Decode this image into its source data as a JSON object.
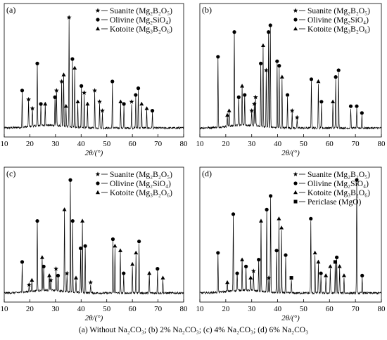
{
  "chart_data": [
    {
      "type": "line",
      "panel_label": "(a)",
      "xlabel": "2θ/(°)",
      "xlim": [
        10,
        80
      ],
      "xticks": [
        10,
        20,
        30,
        40,
        50,
        60,
        70,
        80
      ],
      "legend_position": "top-right",
      "legend": [
        {
          "marker": "star",
          "text": "Suanite (Mg₂B₂O₅)"
        },
        {
          "marker": "circle",
          "text": "Olivine (Mg₂SiO₄)"
        },
        {
          "marker": "triangle",
          "text": "Kotoite (Mg₃B₂O₆)"
        }
      ],
      "peaks": [
        {
          "x": 17.0,
          "y": 0.32,
          "m": "circle"
        },
        {
          "x": 19.5,
          "y": 0.24,
          "m": "star"
        },
        {
          "x": 21.0,
          "y": 0.16,
          "m": "star"
        },
        {
          "x": 22.9,
          "y": 0.56,
          "m": "circle"
        },
        {
          "x": 24.3,
          "y": 0.2,
          "m": "circle"
        },
        {
          "x": 26.0,
          "y": 0.2,
          "m": "triangle"
        },
        {
          "x": 29.8,
          "y": 0.26,
          "m": "circle"
        },
        {
          "x": 30.4,
          "y": 0.32,
          "m": "star"
        },
        {
          "x": 32.4,
          "y": 0.4,
          "m": "star"
        },
        {
          "x": 33.2,
          "y": 0.46,
          "m": "triangle"
        },
        {
          "x": 34.1,
          "y": 0.18,
          "m": "triangle"
        },
        {
          "x": 35.3,
          "y": 0.97,
          "m": "star"
        },
        {
          "x": 36.6,
          "y": 0.6,
          "m": "circle"
        },
        {
          "x": 37.5,
          "y": 0.52,
          "m": "triangle"
        },
        {
          "x": 38.7,
          "y": 0.22,
          "m": "triangle"
        },
        {
          "x": 40.1,
          "y": 0.36,
          "m": "circle"
        },
        {
          "x": 41.2,
          "y": 0.3,
          "m": "star"
        },
        {
          "x": 42.5,
          "y": 0.2,
          "m": "triangle"
        },
        {
          "x": 45.3,
          "y": 0.32,
          "m": "star"
        },
        {
          "x": 47.2,
          "y": 0.22,
          "m": "star"
        },
        {
          "x": 48.3,
          "y": 0.14,
          "m": "star"
        },
        {
          "x": 52.2,
          "y": 0.4,
          "m": "circle"
        },
        {
          "x": 55.4,
          "y": 0.22,
          "m": "triangle"
        },
        {
          "x": 56.7,
          "y": 0.2,
          "m": "circle"
        },
        {
          "x": 59.7,
          "y": 0.22,
          "m": "star"
        },
        {
          "x": 61.3,
          "y": 0.28,
          "m": "circle"
        },
        {
          "x": 62.3,
          "y": 0.34,
          "m": "circle"
        },
        {
          "x": 63.6,
          "y": 0.2,
          "m": "triangle"
        },
        {
          "x": 65.6,
          "y": 0.16,
          "m": "triangle"
        },
        {
          "x": 67.8,
          "y": 0.14,
          "m": "circle"
        }
      ]
    },
    {
      "type": "line",
      "panel_label": "(b)",
      "xlabel": "2θ/(°)",
      "xlim": [
        10,
        80
      ],
      "xticks": [
        10,
        20,
        30,
        40,
        50,
        60,
        70,
        80
      ],
      "legend_position": "top-right",
      "legend": [
        {
          "marker": "star",
          "text": "Suanite (Mg₂B₂O₅)"
        },
        {
          "marker": "circle",
          "text": "Olivine (Mg₂SiO₄)"
        },
        {
          "marker": "triangle",
          "text": "Kotoite (Mg₃B₂O₆)"
        }
      ],
      "peaks": [
        {
          "x": 17.0,
          "y": 0.62,
          "m": "circle"
        },
        {
          "x": 20.6,
          "y": 0.1,
          "m": "triangle"
        },
        {
          "x": 21.3,
          "y": 0.14,
          "m": "triangle"
        },
        {
          "x": 23.3,
          "y": 0.84,
          "m": "circle"
        },
        {
          "x": 25.0,
          "y": 0.26,
          "m": "circle"
        },
        {
          "x": 26.3,
          "y": 0.36,
          "m": "triangle"
        },
        {
          "x": 27.3,
          "y": 0.28,
          "m": "circle"
        },
        {
          "x": 30.0,
          "y": 0.14,
          "m": "star"
        },
        {
          "x": 31.0,
          "y": 0.2,
          "m": "star"
        },
        {
          "x": 31.5,
          "y": 0.26,
          "m": "star"
        },
        {
          "x": 33.5,
          "y": 0.56,
          "m": "circle"
        },
        {
          "x": 34.4,
          "y": 0.72,
          "m": "triangle"
        },
        {
          "x": 35.6,
          "y": 0.5,
          "m": "star"
        },
        {
          "x": 36.5,
          "y": 0.84,
          "m": "circle"
        },
        {
          "x": 37.2,
          "y": 0.9,
          "m": "circle"
        },
        {
          "x": 39.8,
          "y": 0.58,
          "m": "circle"
        },
        {
          "x": 40.6,
          "y": 0.54,
          "m": "circle"
        },
        {
          "x": 41.7,
          "y": 0.44,
          "m": "triangle"
        },
        {
          "x": 43.8,
          "y": 0.28,
          "m": "circle"
        },
        {
          "x": 45.6,
          "y": 0.14,
          "m": "star"
        },
        {
          "x": 47.5,
          "y": 0.08,
          "m": "star"
        },
        {
          "x": 53.0,
          "y": 0.42,
          "m": "circle"
        },
        {
          "x": 55.7,
          "y": 0.4,
          "m": "triangle"
        },
        {
          "x": 56.9,
          "y": 0.22,
          "m": "circle"
        },
        {
          "x": 61.3,
          "y": 0.22,
          "m": "triangle"
        },
        {
          "x": 62.4,
          "y": 0.44,
          "m": "circle"
        },
        {
          "x": 63.5,
          "y": 0.5,
          "m": "circle"
        },
        {
          "x": 68.2,
          "y": 0.18,
          "m": "circle"
        },
        {
          "x": 70.5,
          "y": 0.18,
          "m": "circle"
        },
        {
          "x": 72.5,
          "y": 0.12,
          "m": "circle"
        }
      ]
    },
    {
      "type": "line",
      "panel_label": "(c)",
      "xlabel": "2θ/(°)",
      "xlim": [
        10,
        80
      ],
      "xticks": [
        10,
        20,
        30,
        40,
        50,
        60,
        70,
        80
      ],
      "legend_position": "top-right",
      "legend": [
        {
          "marker": "star",
          "text": "Suanite (Mg₂B₂O₅)"
        },
        {
          "marker": "circle",
          "text": "Olivine (Mg₂SiO₄)"
        },
        {
          "marker": "triangle",
          "text": "Kotoite (Mg₃B₂O₆)"
        }
      ],
      "peaks": [
        {
          "x": 17.0,
          "y": 0.26,
          "m": "circle"
        },
        {
          "x": 19.7,
          "y": 0.06,
          "m": "star"
        },
        {
          "x": 20.8,
          "y": 0.1,
          "m": "triangle"
        },
        {
          "x": 22.9,
          "y": 0.62,
          "m": "circle"
        },
        {
          "x": 24.8,
          "y": 0.3,
          "m": "triangle"
        },
        {
          "x": 25.4,
          "y": 0.22,
          "m": "circle"
        },
        {
          "x": 27.6,
          "y": 0.14,
          "m": "triangle"
        },
        {
          "x": 28.2,
          "y": 0.1,
          "m": "star"
        },
        {
          "x": 30.2,
          "y": 0.2,
          "m": "star"
        },
        {
          "x": 31.0,
          "y": 0.14,
          "m": "circle"
        },
        {
          "x": 33.5,
          "y": 0.72,
          "m": "triangle"
        },
        {
          "x": 34.5,
          "y": 0.16,
          "m": "star"
        },
        {
          "x": 35.8,
          "y": 0.98,
          "m": "circle"
        },
        {
          "x": 36.7,
          "y": 0.62,
          "m": "circle"
        },
        {
          "x": 38.0,
          "y": 0.12,
          "m": "triangle"
        },
        {
          "x": 39.8,
          "y": 0.38,
          "m": "circle"
        },
        {
          "x": 40.5,
          "y": 0.62,
          "m": "triangle"
        },
        {
          "x": 41.6,
          "y": 0.4,
          "m": "circle"
        },
        {
          "x": 43.7,
          "y": 0.08,
          "m": "star"
        },
        {
          "x": 52.4,
          "y": 0.46,
          "m": "circle"
        },
        {
          "x": 53.2,
          "y": 0.4,
          "m": "triangle"
        },
        {
          "x": 55.3,
          "y": 0.36,
          "m": "triangle"
        },
        {
          "x": 56.6,
          "y": 0.16,
          "m": "circle"
        },
        {
          "x": 60.0,
          "y": 0.24,
          "m": "triangle"
        },
        {
          "x": 61.4,
          "y": 0.34,
          "m": "triangle"
        },
        {
          "x": 62.6,
          "y": 0.44,
          "m": "circle"
        },
        {
          "x": 66.6,
          "y": 0.16,
          "m": "triangle"
        },
        {
          "x": 69.8,
          "y": 0.2,
          "m": "circle"
        },
        {
          "x": 71.9,
          "y": 0.12,
          "m": "triangle"
        }
      ]
    },
    {
      "type": "line",
      "panel_label": "(d)",
      "xlabel": "2θ/(°)",
      "xlim": [
        10,
        80
      ],
      "xticks": [
        10,
        20,
        30,
        40,
        50,
        60,
        70,
        80
      ],
      "legend_position": "top-right",
      "legend": [
        {
          "marker": "star",
          "text": "Suanite (Mg₂B₂O₅)"
        },
        {
          "marker": "circle",
          "text": "Olivine (Mg₂SiO₄)"
        },
        {
          "marker": "triangle",
          "text": "Kotoite (Mg₃B₂O₆)"
        },
        {
          "marker": "square",
          "text": "Periclase (MgO)"
        }
      ],
      "peaks": [
        {
          "x": 17.0,
          "y": 0.34,
          "m": "circle"
        },
        {
          "x": 20.6,
          "y": 0.08,
          "m": "triangle"
        },
        {
          "x": 22.9,
          "y": 0.68,
          "m": "circle"
        },
        {
          "x": 24.4,
          "y": 0.16,
          "m": "circle"
        },
        {
          "x": 26.3,
          "y": 0.28,
          "m": "triangle"
        },
        {
          "x": 27.8,
          "y": 0.22,
          "m": "circle"
        },
        {
          "x": 29.6,
          "y": 0.12,
          "m": "triangle"
        },
        {
          "x": 30.7,
          "y": 0.18,
          "m": "star"
        },
        {
          "x": 32.7,
          "y": 0.28,
          "m": "circle"
        },
        {
          "x": 33.6,
          "y": 0.62,
          "m": "triangle"
        },
        {
          "x": 35.8,
          "y": 0.72,
          "m": "circle"
        },
        {
          "x": 36.6,
          "y": 0.12,
          "m": "star"
        },
        {
          "x": 37.3,
          "y": 0.84,
          "m": "circle"
        },
        {
          "x": 39.6,
          "y": 0.36,
          "m": "circle"
        },
        {
          "x": 40.5,
          "y": 0.64,
          "m": "triangle"
        },
        {
          "x": 41.5,
          "y": 0.56,
          "m": "triangle"
        },
        {
          "x": 43.1,
          "y": 0.32,
          "m": "circle"
        },
        {
          "x": 45.3,
          "y": 0.12,
          "m": "square"
        },
        {
          "x": 52.8,
          "y": 0.64,
          "m": "circle"
        },
        {
          "x": 54.4,
          "y": 0.34,
          "m": "triangle"
        },
        {
          "x": 55.7,
          "y": 0.26,
          "m": "triangle"
        },
        {
          "x": 56.7,
          "y": 0.16,
          "m": "circle"
        },
        {
          "x": 58.6,
          "y": 0.14,
          "m": "triangle"
        },
        {
          "x": 60.3,
          "y": 0.22,
          "m": "triangle"
        },
        {
          "x": 62.2,
          "y": 0.26,
          "m": "square"
        },
        {
          "x": 62.8,
          "y": 0.3,
          "m": "circle"
        },
        {
          "x": 63.9,
          "y": 0.22,
          "m": "triangle"
        },
        {
          "x": 65.6,
          "y": 0.14,
          "m": "triangle"
        },
        {
          "x": 70.5,
          "y": 0.98,
          "m": "circle"
        },
        {
          "x": 72.6,
          "y": 0.14,
          "m": "circle"
        }
      ]
    }
  ],
  "caption": "(a) Without Na₂CO₃; (b) 2% Na₂CO₃; (c) 4% Na₂CO₃; (d) 6% Na₂CO₃"
}
